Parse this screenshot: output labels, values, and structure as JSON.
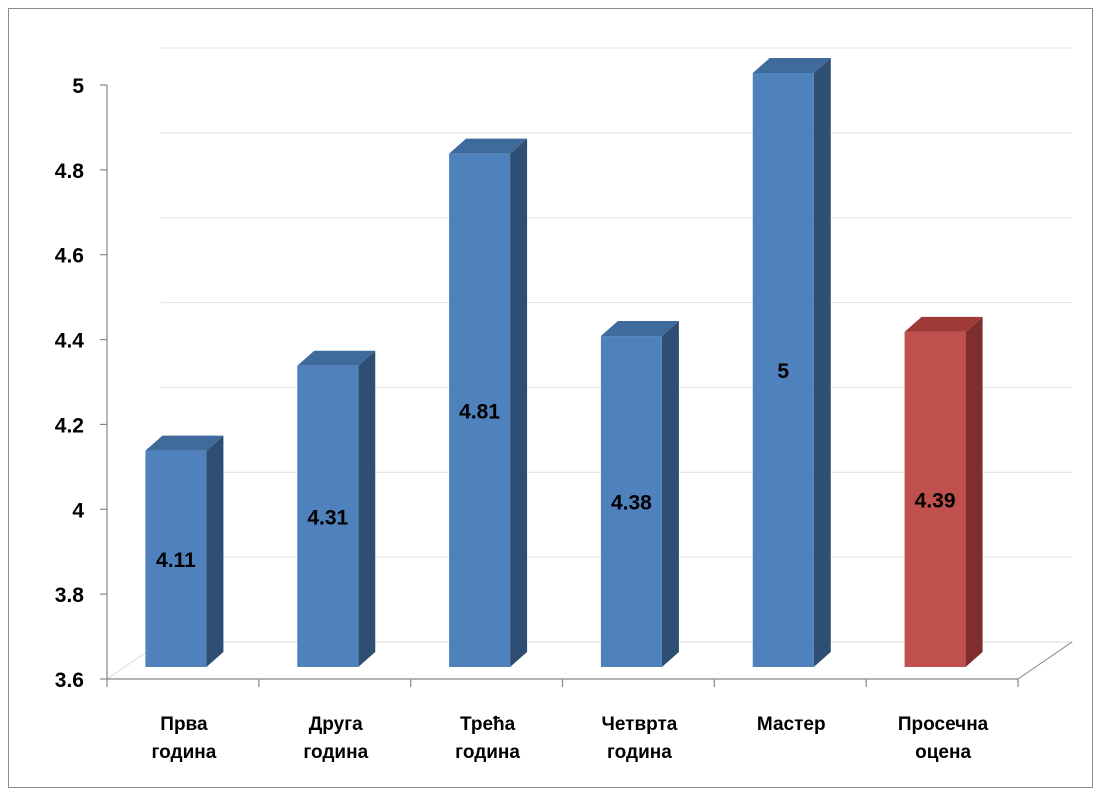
{
  "chart_data": {
    "type": "bar",
    "categories": [
      [
        "Прва",
        "година"
      ],
      [
        "Друга",
        "година"
      ],
      [
        "Трећа",
        "година"
      ],
      [
        "Четврта",
        "година"
      ],
      [
        "Мастер"
      ],
      [
        "Просечна",
        "оцена"
      ]
    ],
    "values": [
      4.11,
      4.31,
      4.81,
      4.38,
      5,
      4.39
    ],
    "data_labels": [
      "4.11",
      "4.31",
      "4.81",
      "4.38",
      "5",
      "4.39"
    ],
    "y_ticks": [
      "3.6",
      "3.8",
      "4",
      "4.2",
      "4.4",
      "4.6",
      "4.8",
      "5"
    ],
    "ylim": [
      3.6,
      5
    ],
    "grid": true,
    "legend": "none",
    "style": "3d-column",
    "colors": {
      "bar": "#4F81BD",
      "bar_top": "#3F6A9C",
      "bar_side": "#2F4E73",
      "highlight": "#C0504D",
      "highlight_top": "#9E3A37",
      "highlight_side": "#7F2E2C",
      "grid": "#E2E2E2",
      "axis": "#868686"
    },
    "highlight_index": 5
  }
}
